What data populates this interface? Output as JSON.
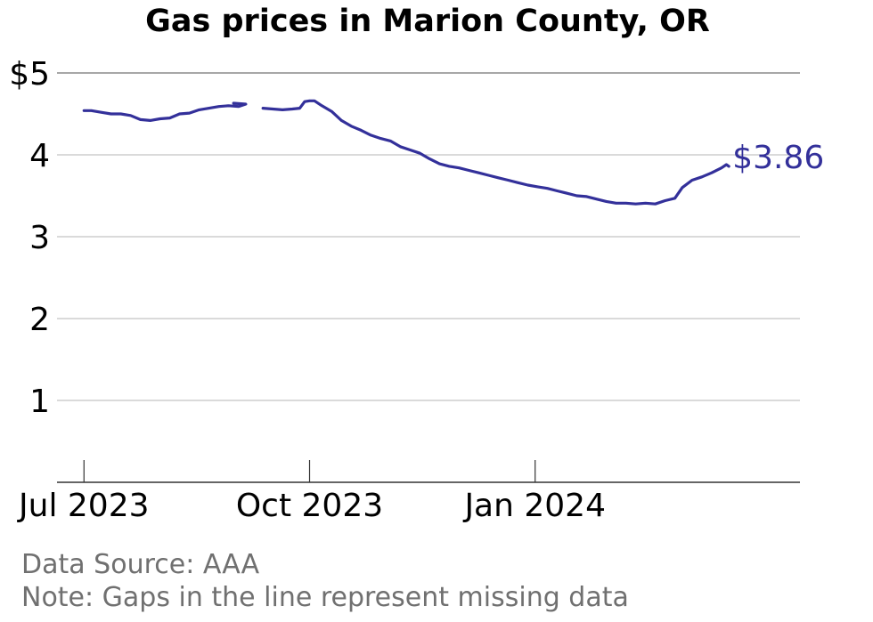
{
  "colors": {
    "line": "#33309a",
    "grid": "#b5b5b5",
    "top_grid": "#8a8a8a",
    "axis": "#333333",
    "footer": "#707070"
  },
  "footer": {
    "source": "Data Source: AAA",
    "note": "Note: Gaps in the line represent missing data"
  },
  "chart_data": {
    "type": "line",
    "title": "Gas prices in Marion County, OR",
    "xlabel": "",
    "ylabel": "",
    "x_type": "date",
    "xlim": [
      "2023-06-20",
      "2024-04-18"
    ],
    "ylim": [
      0,
      5
    ],
    "y_ticks": [
      {
        "value": 1,
        "label": "1"
      },
      {
        "value": 2,
        "label": "2"
      },
      {
        "value": 3,
        "label": "3"
      },
      {
        "value": 4,
        "label": "4"
      },
      {
        "value": 5,
        "label": "$5"
      }
    ],
    "x_ticks": [
      {
        "value": "2023-07-01",
        "label": "Jul 2023"
      },
      {
        "value": "2023-10-01",
        "label": "Oct 2023"
      },
      {
        "value": "2024-01-01",
        "label": "Jan 2024"
      }
    ],
    "grid": true,
    "end_label": "$3.86",
    "series": [
      {
        "segments": [
          [
            [
              "2023-07-01",
              4.54
            ],
            [
              "2023-07-04",
              4.54
            ],
            [
              "2023-07-08",
              4.52
            ],
            [
              "2023-07-12",
              4.5
            ],
            [
              "2023-07-16",
              4.5
            ],
            [
              "2023-07-20",
              4.48
            ],
            [
              "2023-07-24",
              4.43
            ],
            [
              "2023-07-28",
              4.42
            ],
            [
              "2023-08-01",
              4.44
            ],
            [
              "2023-08-05",
              4.45
            ],
            [
              "2023-08-09",
              4.5
            ],
            [
              "2023-08-13",
              4.51
            ],
            [
              "2023-08-17",
              4.55
            ],
            [
              "2023-08-21",
              4.57
            ],
            [
              "2023-08-25",
              4.59
            ],
            [
              "2023-08-29",
              4.6
            ],
            [
              "2023-09-02",
              4.59
            ],
            [
              "2023-09-05",
              4.62
            ],
            [
              "2023-08-31",
              4.63
            ]
          ],
          [
            [
              "2023-09-12",
              4.57
            ],
            [
              "2023-09-16",
              4.56
            ],
            [
              "2023-09-20",
              4.55
            ],
            [
              "2023-09-24",
              4.56
            ],
            [
              "2023-09-27",
              4.57
            ],
            [
              "2023-09-29",
              4.65
            ],
            [
              "2023-10-01",
              4.66
            ],
            [
              "2023-10-03",
              4.66
            ],
            [
              "2023-10-06",
              4.6
            ],
            [
              "2023-10-10",
              4.53
            ],
            [
              "2023-10-14",
              4.42
            ],
            [
              "2023-10-18",
              4.35
            ],
            [
              "2023-10-22",
              4.3
            ],
            [
              "2023-10-26",
              4.24
            ],
            [
              "2023-10-30",
              4.2
            ],
            [
              "2023-11-03",
              4.17
            ],
            [
              "2023-11-07",
              4.1
            ],
            [
              "2023-11-11",
              4.06
            ],
            [
              "2023-11-15",
              4.02
            ],
            [
              "2023-11-19",
              3.95
            ],
            [
              "2023-11-23",
              3.89
            ],
            [
              "2023-11-27",
              3.86
            ],
            [
              "2023-12-01",
              3.84
            ],
            [
              "2023-12-05",
              3.81
            ],
            [
              "2023-12-09",
              3.78
            ],
            [
              "2023-12-13",
              3.75
            ],
            [
              "2023-12-17",
              3.72
            ],
            [
              "2023-12-21",
              3.69
            ],
            [
              "2023-12-25",
              3.66
            ],
            [
              "2023-12-29",
              3.63
            ],
            [
              "2024-01-02",
              3.61
            ],
            [
              "2024-01-06",
              3.59
            ],
            [
              "2024-01-10",
              3.56
            ],
            [
              "2024-01-14",
              3.53
            ],
            [
              "2024-01-18",
              3.5
            ],
            [
              "2024-01-22",
              3.49
            ],
            [
              "2024-01-26",
              3.46
            ],
            [
              "2024-01-30",
              3.43
            ],
            [
              "2024-02-03",
              3.41
            ],
            [
              "2024-02-07",
              3.41
            ],
            [
              "2024-02-11",
              3.4
            ],
            [
              "2024-02-15",
              3.41
            ],
            [
              "2024-02-19",
              3.4
            ],
            [
              "2024-02-23",
              3.44
            ],
            [
              "2024-02-27",
              3.47
            ],
            [
              "2024-03-01",
              3.6
            ],
            [
              "2024-03-05",
              3.69
            ],
            [
              "2024-03-09",
              3.73
            ],
            [
              "2024-03-13",
              3.78
            ],
            [
              "2024-03-17",
              3.84
            ],
            [
              "2024-03-19",
              3.88
            ],
            [
              "2024-03-20",
              3.86
            ]
          ]
        ]
      }
    ]
  }
}
